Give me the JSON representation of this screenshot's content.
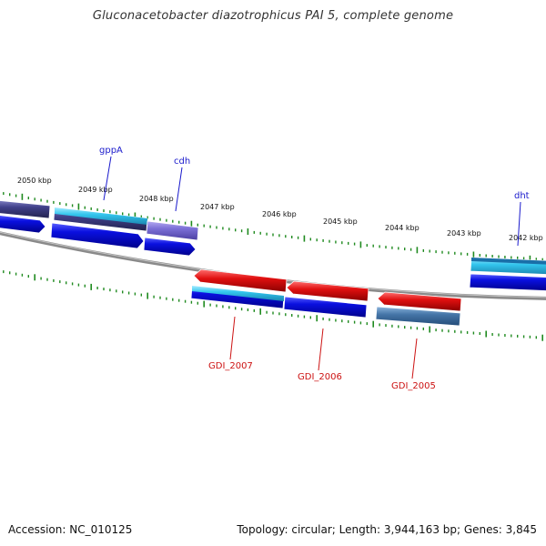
{
  "title": "Gluconacetobacter diazotrophicus PAI 5, complete genome",
  "footer": {
    "accession": "Accession: NC_010125",
    "stats": "Topology: circular; Length: 3,944,163 bp; Genes: 3,845"
  },
  "colors": {
    "backbone": "#8a8a8a",
    "tick": "#1f8a1f",
    "forward_label": "#1a1acc",
    "reverse_label": "#cc1111",
    "cds_blue": "#0a10e0",
    "cds_cyan": "#33c6ee",
    "cds_slate": "#3f3f88",
    "cds_lavender": "#7b6fd6",
    "cds_red": "#e01010",
    "cds_steel": "#4676a8"
  },
  "kbp_labels": [
    "2050 kbp",
    "2049 kbp",
    "2048 kbp",
    "2047 kbp",
    "2046 kbp",
    "2045 kbp",
    "2044 kbp",
    "2043 kbp",
    "2042 kbp"
  ],
  "gene_labels_forward": [
    "gppA",
    "cdh",
    "dht"
  ],
  "gene_labels_reverse": [
    "GDI_2007",
    "GDI_2006",
    "GDI_2005"
  ]
}
